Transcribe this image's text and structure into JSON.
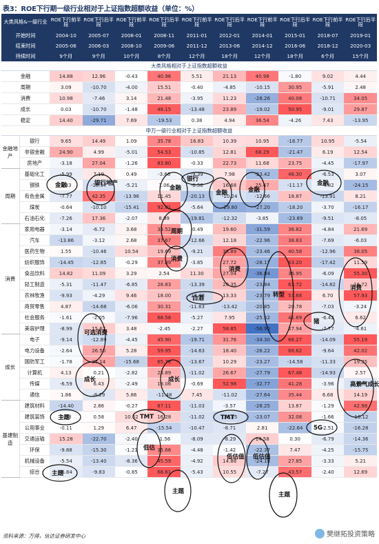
{
  "title": "表3：ROE下行期一级行业相对于上证指数超额收益（单位：%）",
  "header_rows": [
    [
      "大类风格&一级行业",
      "ROE下行前半段",
      "ROE下行后半段",
      "ROE下行前半段",
      "ROE下行后半段",
      "ROE下行前半段",
      "ROE下行后半段",
      "ROE下行前半段",
      "ROE下行后半段",
      "ROE下行前半段",
      "ROE下行后半段"
    ],
    [
      "开始时间",
      "2004-10",
      "2005-07",
      "2008-01",
      "2008-11",
      "2011-01",
      "2012-01",
      "2014-01",
      "2015-01",
      "2018-07",
      "2019-01"
    ],
    [
      "结束时间",
      "2005-06",
      "2006-03",
      "2008-10",
      "2009-06",
      "2011-12",
      "2013-06",
      "2014-12",
      "2016-06",
      "2018-12",
      "2020-03"
    ],
    [
      "持续时间",
      "9个月",
      "9个月",
      "10个月",
      "8个月",
      "12个月",
      "18个月",
      "12个月",
      "18个月",
      "6个月",
      "15个月"
    ]
  ],
  "section1_title": "大类风格相对于上证指数超额收益",
  "section1": [
    {
      "label": "金融",
      "v": [
        "14.88",
        "12.96",
        "-0.43",
        "40.96",
        "5.51",
        "21.13",
        "40.98",
        "-1.80",
        "9.02",
        "4.44"
      ]
    },
    {
      "label": "周期",
      "v": [
        "3.09",
        "-10.70",
        "-4.00",
        "15.51",
        "-0.40",
        "-4.85",
        "-10.15",
        "30.95",
        "-5.91",
        "2.48"
      ]
    },
    {
      "label": "消费",
      "v": [
        "10.98",
        "-7.46",
        "3.14",
        "21.48",
        "-3.95",
        "11.23",
        "-28.26",
        "40.08",
        "-10.71",
        "34.05"
      ]
    },
    {
      "label": "成长",
      "v": [
        "0.03",
        "-10.70",
        "-1.48",
        "48.15",
        "-13.48",
        "23.89",
        "-19.02",
        "50.95",
        "-9.01",
        "29.87"
      ]
    },
    {
      "label": "稳定",
      "v": [
        "14.40",
        "-29.71",
        "7.69",
        "-19.53",
        "0.38",
        "4.94",
        "36.54",
        "-4.26",
        "7.43",
        "-13.95"
      ]
    }
  ],
  "section2_title": "申万一级行业相对于上证指数超额收益",
  "groups": [
    {
      "name": "金融地产",
      "rows": [
        {
          "label": "银行",
          "v": [
            "9.65",
            "14.49",
            "1.09",
            "35.78",
            "16.83",
            "10.39",
            "10.95",
            "-18.77",
            "10.95",
            "-5.54"
          ]
        },
        {
          "label": "非银金融",
          "v": [
            "24.90",
            "4.99",
            "-5.01",
            "54.53",
            "-10.85",
            "12.81",
            "68.29",
            "-21.47",
            "6.19",
            "12.54"
          ]
        },
        {
          "label": "房地产",
          "v": [
            "-3.18",
            "27.04",
            "-1.26",
            "83.80",
            "-0.33",
            "22.73",
            "11.68",
            "23.75",
            "-4.45",
            "-17.97"
          ]
        }
      ]
    },
    {
      "name": "周期",
      "rows": [
        {
          "label": "基础化工",
          "v": [
            "-5.99",
            "7.19",
            "0.49",
            "-3.66",
            "-9.39",
            "7.98",
            "-23.42",
            "46.30",
            "-6.53",
            "3.07"
          ]
        },
        {
          "label": "钢铁",
          "v": [
            "1.33",
            "-10.97",
            "-5.21",
            "1.06",
            "-6.56",
            "16.68",
            "25.47",
            "-11.17",
            "-4.82",
            "-24.15"
          ]
        },
        {
          "label": "有色金属",
          "v": [
            "-7.77",
            "42.35",
            "-13.96",
            "11.45",
            "-20.13",
            "-10.24",
            "-12.66",
            "18.87",
            "-13.91",
            "8.21"
          ]
        },
        {
          "label": "煤炭",
          "v": [
            "-0.64",
            "-10.10",
            "-15.41",
            "92.01",
            "-5.64",
            "-29.80",
            "-27.20",
            "-18.20",
            "-3.70",
            "-16.17"
          ]
        },
        {
          "label": "石油石化",
          "v": [
            "-7.26",
            "17.36",
            "-2.07",
            "8.99",
            "-19.81",
            "-12.32",
            "-3.85",
            "-23.89",
            "-9.51",
            "-8.05"
          ]
        }
      ]
    },
    {
      "name": "消费",
      "rows": [
        {
          "label": "家用电器",
          "v": [
            "-3.14",
            "-6.72",
            "3.68",
            "33.52",
            "-0.49",
            "19.60",
            "-31.59",
            "36.82",
            "-4.84",
            "21.69"
          ]
        },
        {
          "label": "汽车",
          "v": [
            "-13.86",
            "-3.12",
            "2.68",
            "37.67",
            "-12.66",
            "12.18",
            "-22.96",
            "38.83",
            "-7.69",
            "-6.03"
          ]
        },
        {
          "label": "医药生物",
          "v": [
            "1.55",
            "-10.46",
            "10.54",
            "19.69",
            "-9.21",
            "38.89",
            "-23.46",
            "40.58",
            "-12.96",
            "38.05"
          ]
        },
        {
          "label": "纺织服饰",
          "v": [
            "-14.45",
            "-12.85",
            "-0.29",
            "37.89",
            "-3.85",
            "27.72",
            "-28.17",
            "63.20",
            "-17.42",
            "11.59"
          ]
        },
        {
          "label": "食品饮料",
          "v": [
            "14.82",
            "11.09",
            "3.29",
            "2.54",
            "11.30",
            "27.04",
            "-36.84",
            "36.95",
            "-6.09",
            "55.30"
          ]
        },
        {
          "label": "轻工制造",
          "v": [
            "-5.31",
            "-11.47",
            "-6.85",
            "28.83",
            "-13.39",
            "20.35",
            "-23.84",
            "63.72",
            "-14.82",
            "16.72"
          ]
        },
        {
          "label": "农林牧渔",
          "v": [
            "-9.93",
            "-4.29",
            "9.46",
            "18.00",
            "-13.48",
            "13.33",
            "-23.79",
            "53.68",
            "6.70",
            "57.93"
          ]
        },
        {
          "label": "商贸零售",
          "v": [
            "4.87",
            "-14.68",
            "-6.06",
            "30.31",
            "-11.63",
            "-13.42",
            "-20.85",
            "20.78",
            "-7.03",
            "-3.24"
          ]
        },
        {
          "label": "社会服务",
          "v": [
            "-1.61",
            "-2.05",
            "-7.96",
            "68.58",
            "-5.27",
            "7.95",
            "-25.52",
            "41.69",
            "-6.42",
            "6.62"
          ]
        },
        {
          "label": "美容护理",
          "v": [
            "-8.99",
            "15.67",
            "3.48",
            "-2.45",
            "-2.27",
            "58.85",
            "-56.90",
            "27.94",
            "-7.77",
            "-4.61"
          ]
        }
      ]
    },
    {
      "name": "成长",
      "rows": [
        {
          "label": "电子",
          "v": [
            "-9.14",
            "-12.89",
            "-4.45",
            "45.90",
            "-19.71",
            "31.76",
            "-34.30",
            "66.27",
            "-14.09",
            "55.19"
          ]
        },
        {
          "label": "电力设备",
          "v": [
            "-2.64",
            "26.50",
            "5.28",
            "59.95",
            "-14.63",
            "18.40",
            "-26.22",
            "68.62",
            "-9.64",
            "42.02"
          ]
        },
        {
          "label": "国防军工",
          "v": [
            "-1.78",
            "27.14",
            "-15.68",
            "65.76",
            "-13.67",
            "10.29",
            "-23.27",
            "-14.58",
            "-11.33",
            "19.35"
          ]
        },
        {
          "label": "计算机",
          "v": [
            "4.13",
            "0.21",
            "-2.82",
            "23.89",
            "-11.02",
            "26.67",
            "-27.79",
            "67.48",
            "-14.93",
            "2.57"
          ]
        },
        {
          "label": "传媒",
          "v": [
            "-6.59",
            "6.43",
            "-2.49",
            "18.06",
            "-0.69",
            "52.98",
            "-32.77",
            "41.28",
            "-3.96",
            "-9.88"
          ]
        },
        {
          "label": "通信",
          "v": [
            "1.86",
            "-8.29",
            "5.86",
            "-11.48",
            "7.45",
            "-11.02",
            "-27.64",
            "35.44",
            "6.68",
            "14.19"
          ]
        }
      ]
    },
    {
      "name": "基建制造",
      "rows": [
        {
          "label": "建筑材料",
          "v": [
            "-14.40",
            "2.86",
            "-0.27",
            "87.11",
            "-11.03",
            "-3.57",
            "-28.25",
            "13.87",
            "-1.29",
            "42.98"
          ]
        },
        {
          "label": "建筑装饰",
          "v": [
            "0.58",
            "0.58",
            "10.62",
            "16.28",
            "-11.02",
            "-13.35",
            "-23.07",
            "32.08",
            "-1.66",
            "-16.12"
          ]
        },
        {
          "label": "公用事业",
          "v": [
            "-0.11",
            "1.29",
            "6.47",
            "-15.54",
            "-10.47",
            "-8.71",
            "2.81",
            "-22.64",
            "-2.51",
            "-16.28"
          ]
        },
        {
          "label": "交通运输",
          "v": [
            "15.28",
            "-22.70",
            "-2.40",
            "-1.56",
            "-8.09",
            "-8.29",
            "14.58",
            "0.30",
            "-6.79",
            "-14.36"
          ]
        },
        {
          "label": "环保",
          "v": [
            "-9.88",
            "-15.30",
            "-1.21",
            "35.66",
            "-4.48",
            "-1.42",
            "-22.37",
            "7.47",
            "-4.25",
            "-15.75"
          ]
        },
        {
          "label": "机械设备",
          "v": [
            "-5.54",
            "-13.40",
            "-8.36",
            "45.59",
            "-4.92",
            "14.88",
            "-24.18",
            "27.85",
            "-3.33",
            "5.21"
          ]
        },
        {
          "label": "综合",
          "v": [
            "-6.84",
            "-9.83",
            "-0.85",
            "68.61",
            "-5.43",
            "10.55",
            "-7.27",
            "43.57",
            "-2.40",
            "12.69"
          ]
        }
      ]
    }
  ],
  "annotations": [
    {
      "id": "a1",
      "text": "金融"
    },
    {
      "id": "a2",
      "text": "银行地产"
    },
    {
      "id": "a3",
      "text": "金融"
    },
    {
      "id": "a4",
      "text": "银行"
    },
    {
      "id": "a5",
      "text": "金融"
    },
    {
      "id": "a6",
      "text": "金融"
    },
    {
      "id": "a7",
      "text": "金融"
    },
    {
      "id": "a8",
      "text": "周期"
    },
    {
      "id": "a9",
      "text": "消费"
    },
    {
      "id": "a10",
      "text": "消费"
    },
    {
      "id": "a11",
      "text": "白酒"
    },
    {
      "id": "a12",
      "text": "转型"
    },
    {
      "id": "a13",
      "text": "消费"
    },
    {
      "id": "a14",
      "text": "猪"
    },
    {
      "id": "a15",
      "text": "可选消费"
    },
    {
      "id": "a16",
      "text": "成长"
    },
    {
      "id": "a17",
      "text": "成长"
    },
    {
      "id": "a18",
      "text": "高景气成长"
    },
    {
      "id": "a19",
      "text": "主题"
    },
    {
      "id": "a20",
      "text": "TMT"
    },
    {
      "id": "a21",
      "text": "TMT"
    },
    {
      "id": "a22",
      "text": "5G"
    },
    {
      "id": "a23",
      "text": "低估"
    },
    {
      "id": "a24",
      "text": "低估值"
    },
    {
      "id": "a25",
      "text": "低估值"
    },
    {
      "id": "a26",
      "text": "主题"
    },
    {
      "id": "a27",
      "text": "主题"
    },
    {
      "id": "a28",
      "text": "主题"
    }
  ],
  "source": "资料来源：万得，信达证券研发中心",
  "watermark": "樊继拓投资策略",
  "colors": {
    "header": "#1f3864",
    "pos_max": "#e8484a",
    "neg_max": "#3f6fc0"
  }
}
